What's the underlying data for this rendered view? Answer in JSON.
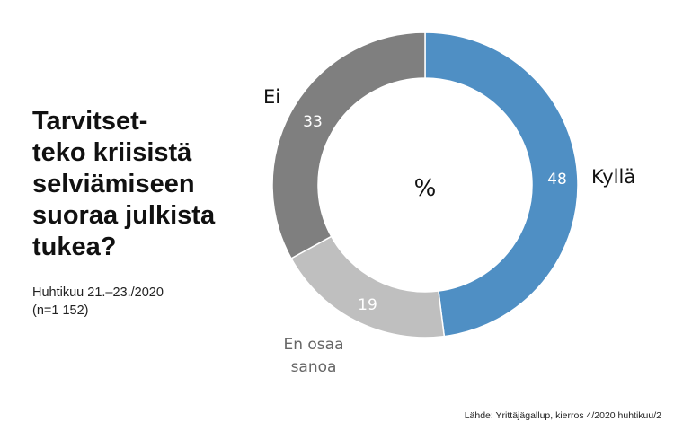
{
  "title_lines": [
    "Tarvitset-",
    "teko kriisistä",
    "selviämiseen",
    "suoraa julkista",
    "tukea?"
  ],
  "subtitle_lines": [
    "Huhtikuu 21.–23./2020",
    "(n=1 152)"
  ],
  "source": "Lähde: Yrittäjägallup, kierros 4/2020 huhtikuu/2",
  "chart_data": {
    "type": "pie",
    "donut": true,
    "center_label": "%",
    "slices": [
      {
        "label": "Kyllä",
        "value": 48,
        "value_label": "48",
        "color": "#4f8fc4"
      },
      {
        "label": "En osaa sanoa",
        "label_lines": [
          "En osaa",
          "sanoa"
        ],
        "value": 19,
        "value_label": "19",
        "color": "#bfbfbf"
      },
      {
        "label": "Ei",
        "value": 33,
        "value_label": "33",
        "color": "#7f7f7f"
      }
    ]
  }
}
